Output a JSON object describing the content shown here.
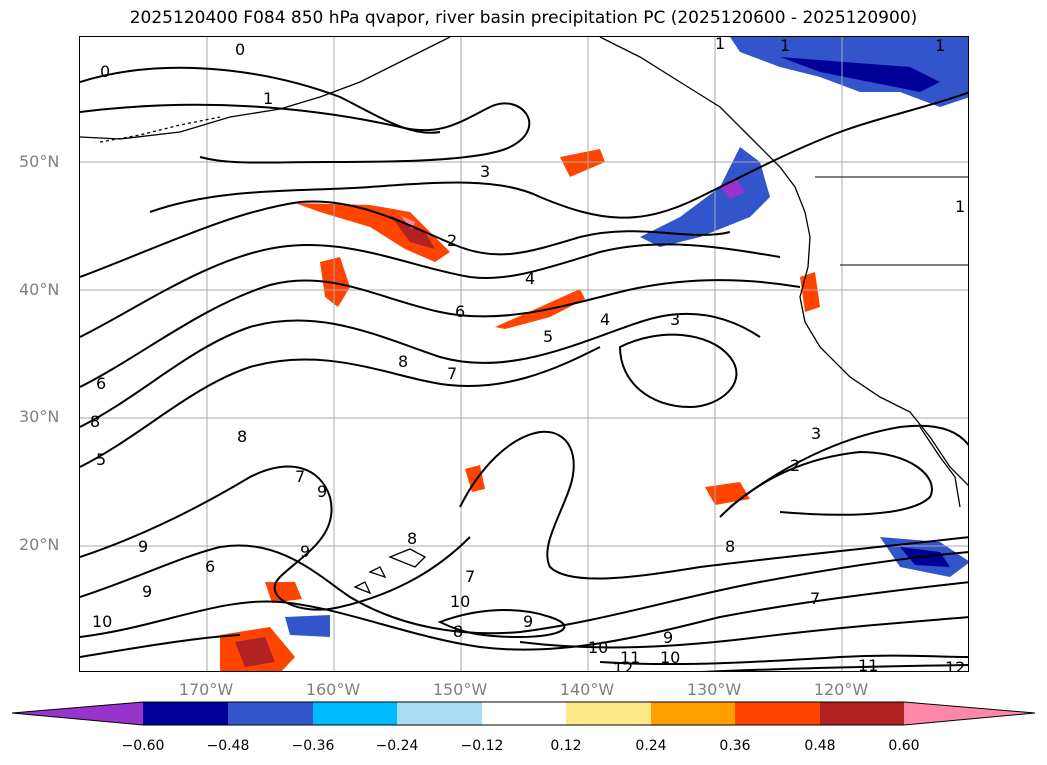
{
  "title": "2025120400 F084 850 hPa qvapor, river basin precipitation PC (2025120600 - 2025120900)",
  "latitude_labels": [
    "50°N",
    "40°N",
    "30°N",
    "20°N"
  ],
  "longitude_labels": [
    "170°W",
    "160°W",
    "150°W",
    "140°W",
    "130°W",
    "120°W"
  ],
  "colorbar": {
    "tick_labels": [
      "−0.60",
      "−0.48",
      "−0.36",
      "−0.24",
      "−0.12",
      "0.12",
      "0.24",
      "0.36",
      "0.48",
      "0.60"
    ],
    "colors": [
      "#9933cc",
      "#000099",
      "#3355cc",
      "#00bbff",
      "#aaddf5",
      "#ffffff",
      "#ffe88a",
      "#ffa000",
      "#ff4400",
      "#b22222",
      "#ff88aa"
    ]
  },
  "contour_labels": [
    "0",
    "0",
    "1",
    "1",
    "1",
    "3",
    "2",
    "4",
    "6",
    "4",
    "3",
    "5",
    "8",
    "7",
    "6",
    "8",
    "8",
    "5",
    "3",
    "2",
    "7",
    "9",
    "8",
    "9",
    "7",
    "8",
    "9",
    "6",
    "9",
    "10",
    "7",
    "9",
    "10",
    "8",
    "9",
    "10",
    "11",
    "10",
    "12",
    "11",
    "12",
    "1",
    "1"
  ],
  "colors": {
    "land_outline": "#000000",
    "grid": "#aaaaaa",
    "axis_label": "#808080"
  }
}
